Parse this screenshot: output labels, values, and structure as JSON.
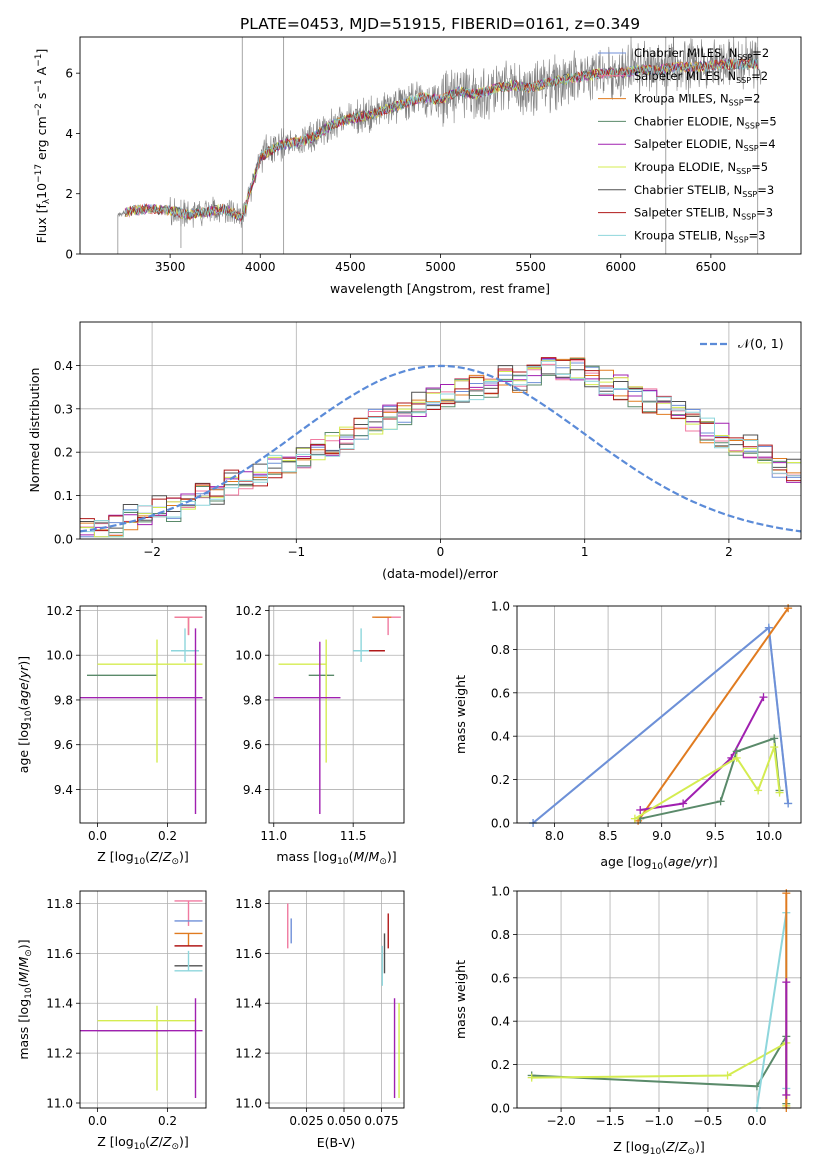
{
  "figure": {
    "title": "PLATE=0453, MJD=51915, FIBERID=0161, z=0.349"
  },
  "colors": {
    "Chabrier MILES": "#6f8fd8",
    "Salpeter MILES": "#f07aa0",
    "Kroupa MILES": "#e07b20",
    "Chabrier ELODIE": "#5a8a6a",
    "Salpeter ELODIE": "#a020b0",
    "Kroupa ELODIE": "#d4ec50",
    "Chabrier STELIB": "#505050",
    "Salpeter STELIB": "#b01818",
    "Kroupa STELIB": "#8ed6dc",
    "data": "#808080",
    "gauss": "#5b8bd8"
  },
  "chart_data": [
    {
      "id": "spectrum",
      "type": "line",
      "xlabel": "wavelength [Angstrom, rest frame]",
      "ylabel": "Flux [f$_\\lambda$10$^{-17}$ erg cm$^{-2}$ s$^{-1}$ A$^{-1}$]",
      "ylabel_parts": [
        "Flux [f",
        "λ",
        "10",
        "−17",
        " erg cm",
        "−2",
        " s",
        "−1",
        " A",
        "−1",
        "]"
      ],
      "xlim": [
        3000,
        7000
      ],
      "ylim": [
        0,
        7.2
      ],
      "xticks": [
        3500,
        4000,
        4500,
        5000,
        5500,
        6000,
        6500
      ],
      "yticks": [
        0,
        2,
        4,
        6
      ],
      "legend_position": "right",
      "continuum": {
        "x": [
          3210,
          3300,
          3400,
          3500,
          3600,
          3700,
          3800,
          3900,
          4000,
          4100,
          4200,
          4300,
          4400,
          4500,
          4600,
          4700,
          4800,
          4900,
          5000,
          5100,
          5200,
          5300,
          5400,
          5500,
          5600,
          5700,
          5800,
          5900,
          6000,
          6100,
          6200,
          6300,
          6400,
          6500,
          6600,
          6700,
          6780
        ],
        "y": [
          1.3,
          1.45,
          1.5,
          1.45,
          1.3,
          1.4,
          1.5,
          1.2,
          3.2,
          3.6,
          3.7,
          3.9,
          4.3,
          4.5,
          4.6,
          4.8,
          5.0,
          5.2,
          5.1,
          5.4,
          5.3,
          5.5,
          5.6,
          5.5,
          5.7,
          5.8,
          5.9,
          6.0,
          6.0,
          6.1,
          6.1,
          6.2,
          6.2,
          6.25,
          6.3,
          6.3,
          6.3
        ]
      },
      "series": [
        {
          "name": "Chabrier MILES, N$_{SSP}$=2",
          "label": "Chabrier MILES, N",
          "n": "=2"
        },
        {
          "name": "Salpeter MILES, N$_{SSP}$=2",
          "label": "Salpeter MILES, N",
          "n": "=2"
        },
        {
          "name": "Kroupa MILES, N$_{SSP}$=2",
          "label": "Kroupa MILES, N",
          "n": "=2"
        },
        {
          "name": "Chabrier ELODIE, N$_{SSP}$=5",
          "label": "Chabrier ELODIE, N",
          "n": "=5"
        },
        {
          "name": "Salpeter ELODIE, N$_{SSP}$=4",
          "label": "Salpeter ELODIE, N",
          "n": "=4"
        },
        {
          "name": "Kroupa ELODIE, N$_{SSP}$=5",
          "label": "Kroupa ELODIE, N",
          "n": "=5"
        },
        {
          "name": "Chabrier STELIB, N$_{SSP}$=3",
          "label": "Chabrier STELIB, N",
          "n": "=3"
        },
        {
          "name": "Salpeter STELIB, N$_{SSP}$=3",
          "label": "Salpeter STELIB, N",
          "n": "=3"
        },
        {
          "name": "Kroupa STELIB, N$_{SSP}$=3",
          "label": "Kroupa STELIB, N",
          "n": "=3"
        }
      ],
      "ssp_sub": "SSP"
    },
    {
      "id": "residuals",
      "type": "line",
      "xlabel": "(data-model)/error",
      "ylabel": "Normed distribution",
      "xlim": [
        -2.5,
        2.5
      ],
      "ylim": [
        0,
        0.5
      ],
      "xticks": [
        -2,
        -1,
        0,
        1,
        2
      ],
      "xticklabels": [
        "−2",
        "−1",
        "0",
        "1",
        "2"
      ],
      "yticks": [
        0.0,
        0.1,
        0.2,
        0.3,
        0.4
      ],
      "yticklabels": [
        "0.0",
        "0.1",
        "0.2",
        "0.3",
        "0.4"
      ],
      "grid": true,
      "legend": "𝒩(0, 1)",
      "legend_position": "top-right",
      "bin_width": 0.1,
      "base_hist": [
        0.02,
        0.02,
        0.03,
        0.05,
        0.05,
        0.07,
        0.07,
        0.09,
        0.1,
        0.11,
        0.13,
        0.14,
        0.15,
        0.17,
        0.18,
        0.19,
        0.2,
        0.22,
        0.23,
        0.25,
        0.27,
        0.28,
        0.29,
        0.31,
        0.32,
        0.33,
        0.34,
        0.35,
        0.35,
        0.37,
        0.36,
        0.38,
        0.4,
        0.39,
        0.39,
        0.38,
        0.36,
        0.35,
        0.33,
        0.32,
        0.31,
        0.29,
        0.27,
        0.25,
        0.24,
        0.22,
        0.21,
        0.19,
        0.17,
        0.16,
        0.14,
        0.13,
        0.12,
        0.1,
        0.09,
        0.08,
        0.07,
        0.06,
        0.05,
        0.05,
        0.04,
        0.04,
        0.03,
        0.03,
        0.03,
        0.02,
        0.02,
        0.02,
        0.02,
        0.02
      ]
    },
    {
      "id": "age_vs_Z",
      "type": "scatter",
      "xlabel": "Z [log$_{10}$(Z/Z$_\\odot$)]",
      "ylabel": "age  [log$_{10}$(age/yr)]",
      "xlim": [
        -0.05,
        0.31
      ],
      "ylim": [
        9.25,
        10.22
      ],
      "xticks": [
        0.0,
        0.2
      ],
      "xticklabels": [
        "0.0",
        "0.2"
      ],
      "yticks": [
        9.4,
        9.6,
        9.8,
        10.0,
        10.2
      ],
      "yticklabels": [
        "9.4",
        "9.6",
        "9.8",
        "10.0",
        "10.2"
      ],
      "grid": true,
      "points": [
        {
          "model": "Kroupa MILES",
          "x": 0.26,
          "xerr": [
            0.04,
            0.04
          ],
          "y": 10.17,
          "yerr": [
            0.08,
            0.0
          ]
        },
        {
          "model": "Salpeter MILES",
          "x": 0.26,
          "xerr": [
            0.04,
            0.04
          ],
          "y": 10.17,
          "yerr": [
            0.08,
            0.0
          ]
        },
        {
          "model": "Kroupa STELIB",
          "x": 0.25,
          "xerr": [
            0.04,
            0.04
          ],
          "y": 10.02,
          "yerr": [
            0.05,
            0.1
          ]
        },
        {
          "model": "Chabrier ELODIE",
          "x": 0.17,
          "xerr": [
            0.2,
            0.0
          ],
          "y": 9.91,
          "yerr": [
            0.0,
            0.0
          ]
        },
        {
          "model": "Kroupa ELODIE",
          "x": 0.17,
          "xerr": [
            0.17,
            0.13
          ],
          "y": 9.96,
          "yerr": [
            0.44,
            0.11
          ]
        },
        {
          "model": "Salpeter ELODIE",
          "x": 0.28,
          "xerr": [
            0.33,
            0.02
          ],
          "y": 9.81,
          "yerr": [
            0.52,
            0.31
          ]
        }
      ]
    },
    {
      "id": "age_vs_mass",
      "type": "scatter",
      "xlabel": "mass [log$_{10}$(M/M$_\\odot$)]",
      "xlim": [
        10.97,
        11.82
      ],
      "ylim": [
        9.25,
        10.22
      ],
      "xticks": [
        11.0,
        11.5
      ],
      "xticklabels": [
        "11.0",
        "11.5"
      ],
      "yticks": [
        9.4,
        9.6,
        9.8,
        10.0,
        10.2
      ],
      "yticklabels": [
        "9.4",
        "9.6",
        "9.8",
        "10.0",
        "10.2"
      ],
      "grid": true,
      "points": [
        {
          "model": "Salpeter MILES",
          "x": 11.72,
          "xerr": [
            0.08,
            0.08
          ],
          "y": 10.17,
          "yerr": [
            0.08,
            0.0
          ]
        },
        {
          "model": "Kroupa MILES",
          "x": 11.68,
          "xerr": [
            0.06,
            0.06
          ],
          "y": 10.17,
          "yerr": [
            0.0,
            0.0
          ]
        },
        {
          "model": "Salpeter STELIB",
          "x": 11.63,
          "xerr": [
            0.07,
            0.07
          ],
          "y": 10.02,
          "yerr": [
            0.0,
            0.0
          ]
        },
        {
          "model": "Kroupa STELIB",
          "x": 11.55,
          "xerr": [
            0.05,
            0.05
          ],
          "y": 10.02,
          "yerr": [
            0.05,
            0.1
          ]
        },
        {
          "model": "Chabrier ELODIE",
          "x": 11.3,
          "xerr": [
            0.08,
            0.08
          ],
          "y": 9.91,
          "yerr": [
            0.0,
            0.0
          ]
        },
        {
          "model": "Kroupa ELODIE",
          "x": 11.33,
          "xerr": [
            0.3,
            0.0
          ],
          "y": 9.96,
          "yerr": [
            0.44,
            0.11
          ]
        },
        {
          "model": "Salpeter ELODIE",
          "x": 11.29,
          "xerr": [
            0.29,
            0.13
          ],
          "y": 9.81,
          "yerr": [
            0.52,
            0.25
          ]
        }
      ]
    },
    {
      "id": "mass_weight_vs_age",
      "type": "line",
      "xlabel": "age  [log$_{10}$(age/yr)]",
      "ylabel": "mass weight",
      "xlim": [
        7.65,
        10.3
      ],
      "ylim": [
        0,
        1
      ],
      "xticks": [
        8.0,
        8.5,
        9.0,
        9.5,
        10.0
      ],
      "xticklabels": [
        "8.0",
        "8.5",
        "9.0",
        "9.5",
        "10.0"
      ],
      "yticks": [
        0.0,
        0.2,
        0.4,
        0.6,
        0.8,
        1.0
      ],
      "yticklabels": [
        "0.0",
        "0.2",
        "0.4",
        "0.6",
        "0.8",
        "1.0"
      ],
      "grid": true,
      "series": [
        {
          "model": "Kroupa STELIB",
          "x": [
            7.8,
            10.0,
            10.18
          ],
          "y": [
            0.0,
            0.9,
            0.09
          ]
        },
        {
          "model": "Chabrier MILES",
          "x": [
            7.8,
            10.0,
            10.18
          ],
          "y": [
            0.0,
            0.9,
            0.09
          ]
        },
        {
          "model": "Kroupa MILES",
          "x": [
            8.78,
            10.18
          ],
          "y": [
            0.01,
            0.99
          ]
        },
        {
          "model": "Salpeter ELODIE",
          "x": [
            8.8,
            9.2,
            9.65,
            9.95
          ],
          "y": [
            0.06,
            0.09,
            0.3,
            0.58
          ]
        },
        {
          "model": "Chabrier ELODIE",
          "x": [
            8.8,
            9.55,
            9.7,
            10.05,
            10.1
          ],
          "y": [
            0.02,
            0.1,
            0.33,
            0.39,
            0.15
          ]
        },
        {
          "model": "Kroupa ELODIE",
          "x": [
            8.75,
            9.7,
            9.9,
            10.05,
            10.1
          ],
          "y": [
            0.02,
            0.3,
            0.15,
            0.35,
            0.14
          ]
        }
      ]
    },
    {
      "id": "mass_vs_Z",
      "type": "scatter",
      "xlabel": "Z [log$_{10}$(Z/Z$_\\odot$)]",
      "ylabel": "mass [log$_{10}$(M/M$_\\odot$)]",
      "xlim": [
        -0.05,
        0.31
      ],
      "ylim": [
        10.98,
        11.85
      ],
      "xticks": [
        0.0,
        0.2
      ],
      "xticklabels": [
        "0.0",
        "0.2"
      ],
      "yticks": [
        11.0,
        11.2,
        11.4,
        11.6,
        11.8
      ],
      "yticklabels": [
        "11.0",
        "11.2",
        "11.4",
        "11.6",
        "11.8"
      ],
      "grid": true,
      "points": [
        {
          "model": "Salpeter MILES",
          "x": 0.26,
          "xerr": [
            0.04,
            0.04
          ],
          "y": 11.81,
          "yerr": [
            0.1,
            0.0
          ]
        },
        {
          "model": "Chabrier MILES",
          "x": 0.26,
          "xerr": [
            0.04,
            0.04
          ],
          "y": 11.73,
          "yerr": [
            0.0,
            0.0
          ]
        },
        {
          "model": "Kroupa MILES",
          "x": 0.26,
          "xerr": [
            0.04,
            0.04
          ],
          "y": 11.68,
          "yerr": [
            0.05,
            0.0
          ]
        },
        {
          "model": "Salpeter STELIB",
          "x": 0.26,
          "xerr": [
            0.04,
            0.04
          ],
          "y": 11.63,
          "yerr": [
            0.0,
            0.0
          ]
        },
        {
          "model": "Chabrier STELIB",
          "x": 0.26,
          "xerr": [
            0.04,
            0.04
          ],
          "y": 11.55,
          "yerr": [
            0.0,
            0.0
          ]
        },
        {
          "model": "Kroupa STELIB",
          "x": 0.26,
          "xerr": [
            0.04,
            0.04
          ],
          "y": 11.53,
          "yerr": [
            0.0,
            0.08
          ]
        },
        {
          "model": "Kroupa ELODIE",
          "x": 0.17,
          "xerr": [
            0.17,
            0.11
          ],
          "y": 11.33,
          "yerr": [
            0.28,
            0.06
          ]
        },
        {
          "model": "Chabrier ELODIE",
          "x": 0.2,
          "xerr": [
            0.2,
            0.0
          ],
          "y": 11.29,
          "yerr": [
            0.0,
            0.0
          ]
        },
        {
          "model": "Salpeter ELODIE",
          "x": 0.28,
          "xerr": [
            0.33,
            0.02
          ],
          "y": 11.29,
          "yerr": [
            0.27,
            0.13
          ]
        }
      ]
    },
    {
      "id": "mass_vs_EBV",
      "type": "scatter",
      "xlabel": "E(B-V)",
      "xlim": [
        0.0,
        0.09
      ],
      "ylim": [
        10.98,
        11.85
      ],
      "xticks": [
        0.025,
        0.05,
        0.075
      ],
      "xticklabels": [
        "0.025",
        "0.050",
        "0.075"
      ],
      "yticks": [
        11.0,
        11.2,
        11.4,
        11.6,
        11.8
      ],
      "yticklabels": [
        "11.0",
        "11.2",
        "11.4",
        "11.6",
        "11.8"
      ],
      "grid": true,
      "points": [
        {
          "model": "Salpeter MILES",
          "x": 0.0125,
          "y": 11.72,
          "yerr": [
            0.1,
            0.08
          ]
        },
        {
          "model": "Chabrier MILES",
          "x": 0.0148,
          "y": 11.68,
          "yerr": [
            0.04,
            0.06
          ]
        },
        {
          "model": "Salpeter STELIB",
          "x": 0.0795,
          "y": 11.68,
          "yerr": [
            0.06,
            0.08
          ]
        },
        {
          "model": "Chabrier STELIB",
          "x": 0.077,
          "y": 11.6,
          "yerr": [
            0.08,
            0.08
          ]
        },
        {
          "model": "Kroupa STELIB",
          "x": 0.0755,
          "y": 11.55,
          "yerr": [
            0.08,
            0.08
          ]
        },
        {
          "model": "Salpeter ELODIE",
          "x": 0.0837,
          "y": 11.22,
          "yerr": [
            0.2,
            0.2
          ]
        },
        {
          "model": "Kroupa ELODIE",
          "x": 0.0867,
          "y": 11.21,
          "yerr": [
            0.19,
            0.19
          ]
        }
      ]
    },
    {
      "id": "mass_weight_vs_Z",
      "type": "line",
      "xlabel": "Z [log$_{10}$(Z/Z$_\\odot$)]",
      "ylabel": "mass weight",
      "xlim": [
        -2.45,
        0.45
      ],
      "ylim": [
        0,
        1
      ],
      "xticks": [
        -2.0,
        -1.5,
        -1.0,
        -0.5,
        0.0
      ],
      "xticklabels": [
        "−2.0",
        "−1.5",
        "−1.0",
        "−0.5",
        "0.0"
      ],
      "yticks": [
        0.0,
        0.2,
        0.4,
        0.6,
        0.8,
        1.0
      ],
      "yticklabels": [
        "0.0",
        "0.2",
        "0.4",
        "0.6",
        "0.8",
        "1.0"
      ],
      "grid": true,
      "series": [
        {
          "model": "Chabrier ELODIE",
          "x": [
            -2.3,
            0.0,
            0.3,
            0.3
          ],
          "y": [
            0.15,
            0.1,
            0.33,
            0.02
          ]
        },
        {
          "model": "Kroupa ELODIE",
          "x": [
            -2.3,
            -0.3,
            0.3,
            0.3
          ],
          "y": [
            0.14,
            0.15,
            0.3,
            0.01
          ]
        },
        {
          "model": "Kroupa STELIB",
          "x": [
            0.0,
            0.3,
            0.3
          ],
          "y": [
            0.0,
            0.9,
            0.09
          ]
        },
        {
          "model": "Kroupa MILES",
          "x": [
            0.3,
            0.3
          ],
          "y": [
            0.0,
            0.99
          ]
        },
        {
          "model": "Salpeter ELODIE",
          "x": [
            0.3,
            0.3
          ],
          "y": [
            0.06,
            0.58
          ]
        }
      ]
    }
  ]
}
